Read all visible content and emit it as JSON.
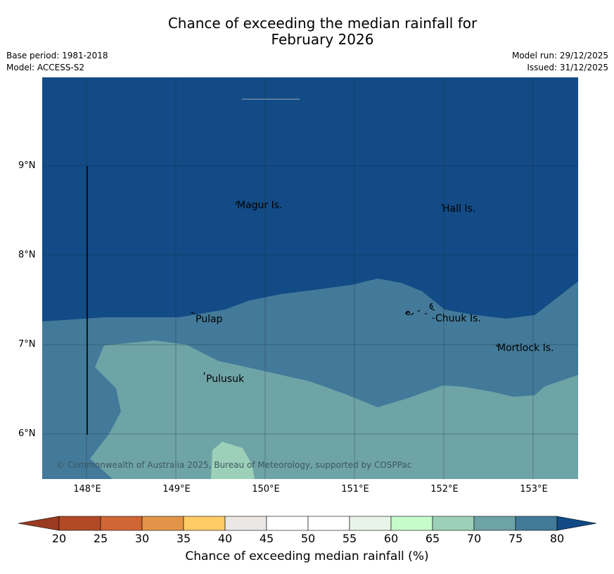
{
  "header": {
    "title_line1": "Chance of exceeding the median rainfall for",
    "title_line2": "February 2026",
    "base_period": "Base period: 1981-2018",
    "model": "Model: ACCESS-S2",
    "model_run": "Model run: 29/12/2025",
    "issued": "Issued: 31/12/2025"
  },
  "map": {
    "lat_labels": [
      "9°N",
      "8°N",
      "7°N",
      "6°N"
    ],
    "lon_labels": [
      "148°E",
      "149°E",
      "150°E",
      "151°E",
      "152°E",
      "153°E"
    ],
    "places": [
      "Magur Is.",
      "Hall Is.",
      "Pulap",
      "Chuuk Is.",
      "Mortlock Is.",
      "Pulusuk"
    ],
    "copyright": "© Commonwealth of Australia 2025, Bureau of Meteorology, supported by COSPPac",
    "colors": {
      "band_75_80": "#124b86",
      "band_70_75": "#437a99",
      "band_65_70": "#6fa4a7",
      "band_60_65": "#9dd0b8"
    }
  },
  "colorbar": {
    "ticks": [
      "20",
      "25",
      "30",
      "35",
      "40",
      "45",
      "50",
      "55",
      "60",
      "65",
      "70",
      "75",
      "80"
    ],
    "colors": [
      "#b24a27",
      "#d06634",
      "#e29548",
      "#fecb65",
      "#ebe7e4",
      "#ffffff",
      "#ffffff",
      "#e8f4e8",
      "#c6fcca",
      "#9cd0b8",
      "#6ea3a6",
      "#427a99"
    ],
    "under_color": "#9a3a20",
    "over_color": "#114a85",
    "label": "Chance of exceeding median rainfall (%)"
  }
}
